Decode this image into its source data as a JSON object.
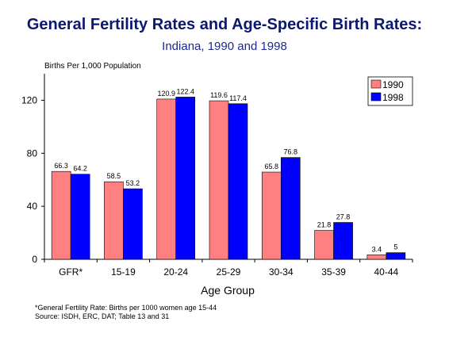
{
  "chart_data": {
    "type": "bar",
    "title": "General Fertility Rates and Age-Specific Birth Rates:",
    "subtitle": "Indiana, 1990 and 1998",
    "ylabel": "Births Per 1,000 Population",
    "xlabel": "Age Group",
    "categories": [
      "GFR*",
      "15-19",
      "20-24",
      "25-29",
      "30-34",
      "35-39",
      "40-44"
    ],
    "series": [
      {
        "name": "1990",
        "color": "#ff8080",
        "values": [
          66.3,
          58.5,
          120.9,
          119.6,
          65.8,
          21.8,
          3.4
        ]
      },
      {
        "name": "1998",
        "color": "#0000ff",
        "values": [
          64.2,
          53.2,
          122.4,
          117.4,
          76.8,
          27.8,
          5
        ]
      }
    ],
    "ylim": [
      0,
      140
    ],
    "yticks": [
      0,
      40,
      80,
      120
    ],
    "grid": false,
    "legend": "top-right"
  },
  "footnotes": [
    "*General Fertility Rate:  Births per 1000 women age 15-44",
    "Source:  ISDH, ERC, DAT; Table 13 and 31"
  ]
}
